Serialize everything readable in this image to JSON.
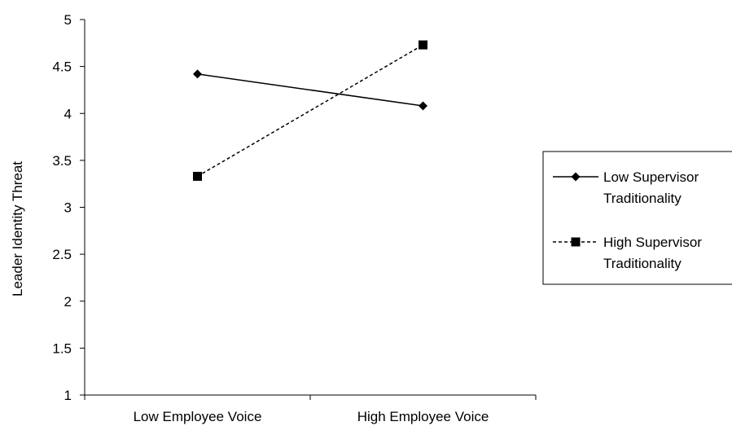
{
  "chart_data": {
    "type": "line",
    "categories": [
      "Low Employee Voice",
      "High Employee Voice"
    ],
    "series": [
      {
        "name": "Low Supervisor Traditionality",
        "legend_lines": [
          "Low Supervisor",
          "Traditionality"
        ],
        "values": [
          4.42,
          4.08
        ],
        "marker": "diamond",
        "line_style": "solid"
      },
      {
        "name": "High Supervisor Traditionality",
        "legend_lines": [
          "High Supervisor",
          "Traditionality"
        ],
        "values": [
          3.33,
          4.73
        ],
        "marker": "square",
        "line_style": "dashed"
      }
    ],
    "ylabel": "Leader Identity Threat",
    "xlabel": "",
    "ylim": [
      1,
      5
    ],
    "yticks": [
      "1",
      "1.5",
      "2",
      "2.5",
      "3",
      "3.5",
      "4",
      "4.5",
      "5"
    ],
    "grid": false,
    "legend_position": "right",
    "colors": {
      "line": "#000000",
      "background": "#ffffff"
    }
  }
}
